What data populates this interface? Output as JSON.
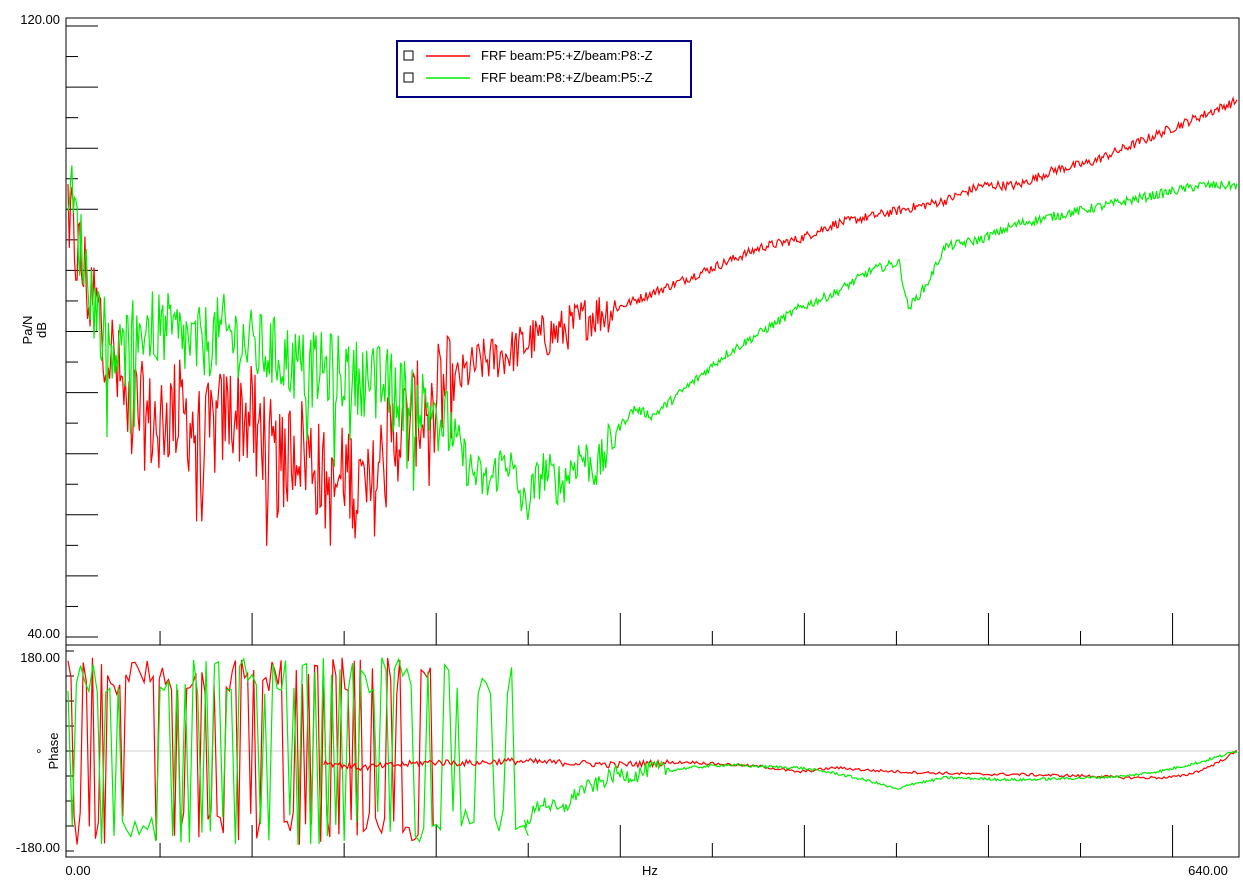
{
  "chart_data": [
    {
      "type": "line",
      "panel": "magnitude",
      "xlabel": "",
      "ylabel_top": "Pa/N",
      "ylabel_bottom": "dB",
      "xlim": [
        0,
        640
      ],
      "ylim": [
        40,
        120
      ],
      "ytick_labels": [
        "120.00",
        "40.00"
      ],
      "grid": false,
      "legend_placement": "top-left",
      "series": [
        {
          "name": "FRF beam:P5:+Z/beam:P8:-Z",
          "color": "#ff0000",
          "x": [
            0,
            3,
            8,
            14,
            20,
            30,
            45,
            60,
            75,
            90,
            105,
            115,
            125,
            135,
            145,
            150,
            160,
            165,
            175,
            185,
            195,
            205,
            215,
            225,
            240,
            255,
            270,
            285,
            300,
            320,
            340,
            360,
            380,
            400,
            420,
            440,
            460,
            480,
            500,
            520,
            540,
            560,
            580,
            600,
            620,
            640
          ],
          "y": [
            97,
            92,
            88,
            84,
            80,
            72,
            68,
            70,
            66,
            70,
            68,
            62,
            66,
            63,
            58,
            63,
            60,
            58,
            66,
            68,
            70,
            72,
            74,
            76,
            77,
            79,
            80,
            82,
            83,
            85,
            87,
            89,
            91,
            92,
            94,
            95,
            96,
            97,
            99,
            99,
            101,
            102,
            104,
            106,
            108,
            110
          ]
        },
        {
          "name": "FRF beam:P8:+Z/beam:P5:-Z",
          "color": "#00ee00",
          "x": [
            0,
            3,
            8,
            14,
            20,
            30,
            40,
            55,
            70,
            85,
            100,
            115,
            130,
            145,
            160,
            175,
            190,
            200,
            210,
            220,
            230,
            240,
            250,
            260,
            270,
            280,
            290,
            300,
            310,
            320,
            340,
            360,
            380,
            400,
            420,
            440,
            455,
            460,
            470,
            480,
            500,
            520,
            540,
            560,
            580,
            600,
            620,
            640
          ],
          "y": [
            100,
            96,
            90,
            84,
            80,
            77,
            81,
            80,
            78,
            80,
            78,
            77,
            75,
            75,
            74,
            73,
            71,
            70,
            67,
            62,
            60,
            64,
            57,
            62,
            60,
            64,
            62,
            67,
            70,
            69,
            73,
            77,
            80,
            83,
            85,
            88,
            89,
            83,
            86,
            91,
            92,
            94,
            95,
            96,
            97,
            98,
            99,
            99
          ]
        }
      ]
    },
    {
      "type": "line",
      "panel": "phase",
      "xlabel": "Hz",
      "ylabel_top": "Phase",
      "ylabel_bottom": "°",
      "xlim": [
        0,
        640
      ],
      "ylim": [
        -180,
        180
      ],
      "xtick_labels": [
        "0.00",
        "640.00"
      ],
      "ytick_labels": [
        "180.00",
        "-180.00"
      ],
      "series": [
        {
          "name": "FRF beam:P5:+Z/beam:P8:-Z",
          "color": "#ff0000",
          "x": [
            140,
            160,
            180,
            200,
            220,
            240,
            260,
            280,
            300,
            320,
            340,
            360,
            380,
            400,
            420,
            440,
            460,
            480,
            500,
            520,
            540,
            560,
            580,
            600,
            610,
            620,
            630,
            640
          ],
          "y": [
            -20,
            -30,
            -25,
            -20,
            -22,
            -18,
            -20,
            -22,
            -25,
            -22,
            -20,
            -24,
            -28,
            -38,
            -30,
            -35,
            -38,
            -40,
            -42,
            -42,
            -44,
            -45,
            -48,
            -48,
            -45,
            -35,
            -20,
            0
          ]
        },
        {
          "name": "FRF beam:P8:+Z/beam:P5:-Z",
          "color": "#00ee00",
          "x": [
            250,
            260,
            270,
            280,
            290,
            300,
            310,
            320,
            330,
            340,
            360,
            380,
            400,
            420,
            440,
            455,
            460,
            470,
            480,
            500,
            520,
            540,
            560,
            580,
            600,
            620,
            640
          ],
          "y": [
            -130,
            -90,
            -110,
            -70,
            -60,
            -40,
            -45,
            -30,
            -35,
            -30,
            -25,
            -28,
            -30,
            -40,
            -55,
            -70,
            -60,
            -55,
            -48,
            -50,
            -52,
            -50,
            -48,
            -45,
            -35,
            -20,
            0
          ]
        }
      ]
    }
  ]
}
